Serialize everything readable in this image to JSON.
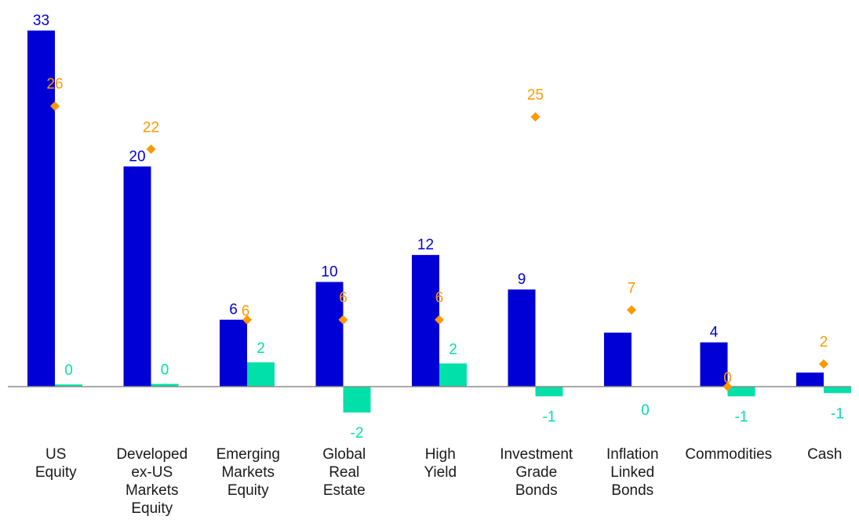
{
  "chart_data": {
    "type": "bar",
    "title": "",
    "xlabel": "",
    "ylabel": "",
    "ylim": [
      -4,
      33
    ],
    "grid": false,
    "legend": "none",
    "categories": [
      [
        "US",
        "Equity"
      ],
      [
        "Developed",
        "ex-US",
        "Markets",
        "Equity"
      ],
      [
        "Emerging",
        "Markets",
        "Equity"
      ],
      [
        "Global",
        "Real",
        "Estate"
      ],
      [
        "High",
        "Yield"
      ],
      [
        "Investment",
        "Grade",
        "Bonds"
      ],
      [
        "Inflation",
        "Linked",
        "Bonds"
      ],
      [
        "Commodities"
      ],
      [
        "Cash"
      ]
    ],
    "series": [
      {
        "kind": "bar",
        "color": "#0000d6",
        "values": [
          33,
          20.4,
          6.2,
          9.7,
          12.2,
          9,
          5,
          4.1,
          1.3
        ],
        "labels": [
          "33",
          "20",
          "6",
          "10",
          "12",
          "9",
          "",
          "4",
          ""
        ]
      },
      {
        "kind": "bar",
        "color": "#00e0a8",
        "values": [
          0.2,
          0.25,
          2.25,
          -2.4,
          2.15,
          -0.9,
          0,
          -0.9,
          -0.6
        ],
        "labels": [
          "0",
          "0",
          "2",
          "-2",
          "2",
          "-1",
          "0",
          "-1",
          "-1"
        ]
      },
      {
        "kind": "marker",
        "color": "#ff9900",
        "values": [
          26,
          22,
          6.2,
          6.2,
          6.2,
          25,
          7.1,
          0,
          2.1
        ],
        "labels": [
          "26",
          "22",
          "6",
          "6",
          "6",
          "25",
          "7",
          "0",
          "2"
        ]
      }
    ]
  }
}
